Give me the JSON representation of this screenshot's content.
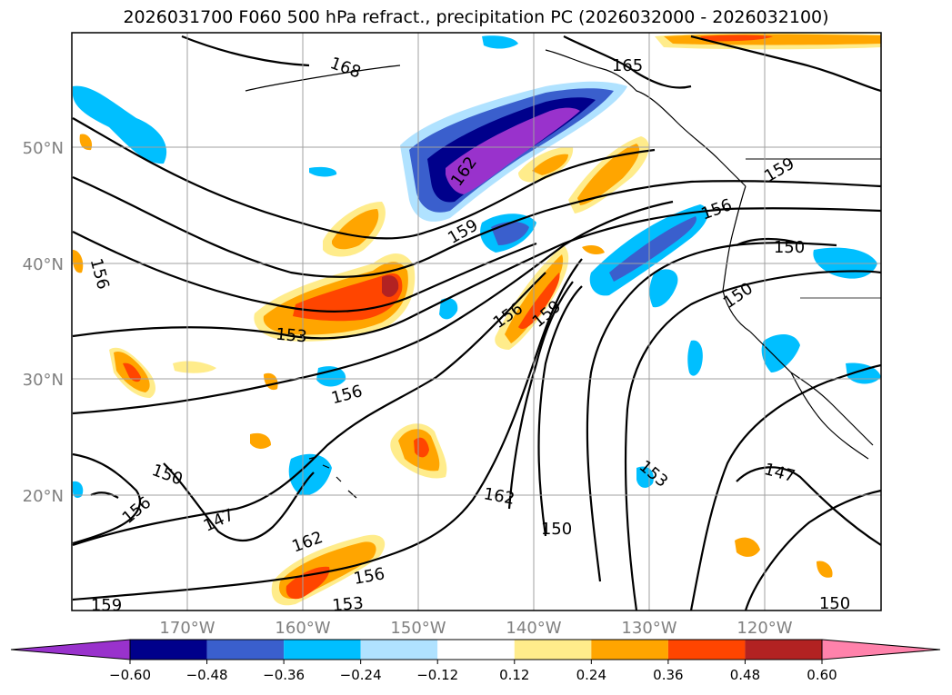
{
  "title": "2026031700 F060 500 hPa refract., precipitation PC (2026032000 - 2026032100)",
  "map": {
    "lat_labels": [
      "50°N",
      "40°N",
      "30°N",
      "20°N"
    ],
    "lon_labels": [
      "170°W",
      "160°W",
      "150°W",
      "140°W",
      "130°W",
      "120°W"
    ],
    "contour_labels": [
      {
        "text": "168",
        "rot": 20
      },
      {
        "text": "165",
        "rot": 0
      },
      {
        "text": "162",
        "rot": -55
      },
      {
        "text": "159",
        "rot": -30
      },
      {
        "text": "156",
        "rot": -20
      },
      {
        "text": "150",
        "rot": 0
      },
      {
        "text": "159",
        "rot": -30
      },
      {
        "text": "156",
        "rot": 75
      },
      {
        "text": "159",
        "rot": -40
      },
      {
        "text": "156",
        "rot": -35
      },
      {
        "text": "153",
        "rot": 5
      },
      {
        "text": "156",
        "rot": -15
      },
      {
        "text": "150",
        "rot": -35
      },
      {
        "text": "150",
        "rot": 20
      },
      {
        "text": "156",
        "rot": -40
      },
      {
        "text": "147",
        "rot": -25
      },
      {
        "text": "162",
        "rot": -20
      },
      {
        "text": "162",
        "rot": 10
      },
      {
        "text": "150",
        "rot": 0
      },
      {
        "text": "153",
        "rot": 40
      },
      {
        "text": "147",
        "rot": 15
      },
      {
        "text": "156",
        "rot": -10
      },
      {
        "text": "153",
        "rot": -5
      },
      {
        "text": "159",
        "rot": 0
      },
      {
        "text": "150",
        "rot": 0
      }
    ]
  },
  "colorbar": {
    "ticks": [
      "−0.60",
      "−0.48",
      "−0.36",
      "−0.24",
      "−0.12",
      "0.12",
      "0.24",
      "0.36",
      "0.48",
      "0.60"
    ],
    "colors": [
      "#9932CC",
      "#00008B",
      "#3A5FCD",
      "#00BFFF",
      "#B0E2FF",
      "#FFFFFF",
      "#FFEC8B",
      "#FFA500",
      "#FF4500",
      "#B22222",
      "#FF82AB"
    ]
  }
}
